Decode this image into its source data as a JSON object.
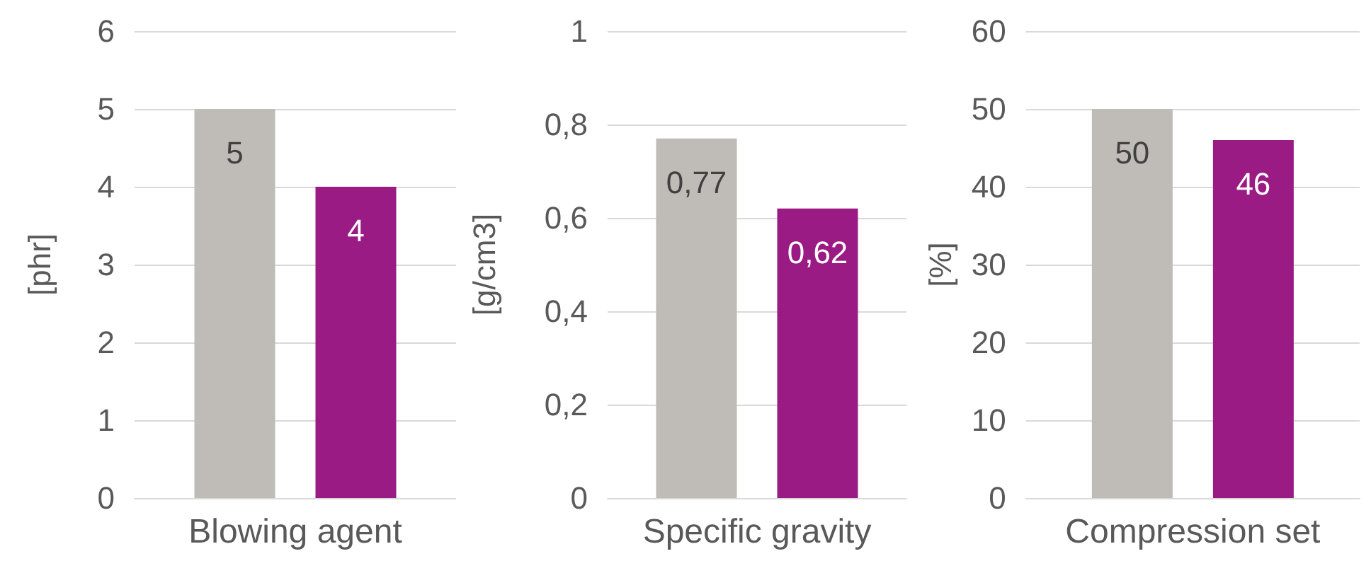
{
  "chart_data": [
    {
      "type": "bar",
      "categories": [
        "Blowing agent"
      ],
      "ylabel": "[phr]",
      "ylim": [
        0,
        6
      ],
      "yticks": [
        0,
        1,
        2,
        3,
        4,
        5,
        6
      ],
      "grid": "y",
      "data_labels": true,
      "series": [
        {
          "color": "#bfbbb6",
          "values": [
            5
          ]
        },
        {
          "color": "#9b1b85",
          "values": [
            4
          ]
        }
      ]
    },
    {
      "type": "bar",
      "categories": [
        "Specific gravity"
      ],
      "ylabel": "[g/cm3]",
      "ylim": [
        0,
        1
      ],
      "yticks": [
        0,
        {
          "value": 0.2,
          "label": "0,2"
        },
        {
          "value": 0.4,
          "label": "0,4"
        },
        {
          "value": 0.6,
          "label": "0,6"
        },
        {
          "value": 0.8,
          "label": "0,8"
        },
        1
      ],
      "grid": "y",
      "series": [
        {
          "color": "#bfbbb6",
          "values": [
            0.77
          ],
          "value_labels": [
            "0,77"
          ]
        },
        {
          "color": "#9b1b85",
          "values": [
            0.62
          ],
          "value_labels": [
            "0,62"
          ]
        }
      ]
    },
    {
      "type": "bar",
      "categories": [
        "Compression set"
      ],
      "ylabel": "[%]",
      "ylim": [
        0,
        60
      ],
      "yticks": [
        0,
        10,
        20,
        30,
        40,
        50,
        60
      ],
      "grid": "y",
      "data_labels": true,
      "series": [
        {
          "color": "#bfbbb6",
          "values": [
            50
          ]
        },
        {
          "color": "#9b1b85",
          "values": [
            46
          ]
        }
      ]
    }
  ]
}
